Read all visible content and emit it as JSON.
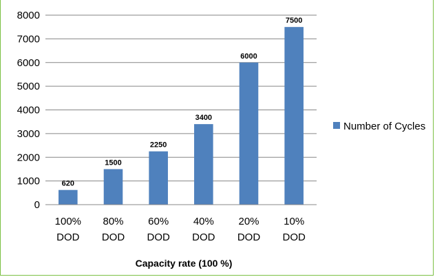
{
  "chart_data": {
    "type": "bar",
    "categories": [
      [
        "100%",
        "DOD"
      ],
      [
        "80%",
        "DOD"
      ],
      [
        "60%",
        "DOD"
      ],
      [
        "40%",
        "DOD"
      ],
      [
        "20%",
        "DOD"
      ],
      [
        "10%",
        "DOD"
      ]
    ],
    "series": [
      {
        "name": "Number of Cycles",
        "values": [
          620,
          1500,
          2250,
          3400,
          6000,
          7500
        ],
        "color": "#4f81bd"
      }
    ],
    "data_labels": [
      "620",
      "1500",
      "2250",
      "3400",
      "6000",
      "7500"
    ],
    "y_ticks": [
      "0",
      "1000",
      "2000",
      "3000",
      "4000",
      "5000",
      "6000",
      "7000",
      "8000"
    ],
    "xlabel": "Capacity rate (100 %)",
    "ylabel": "",
    "ylim": [
      0,
      8000
    ],
    "grid": true,
    "legend_position": "right"
  }
}
